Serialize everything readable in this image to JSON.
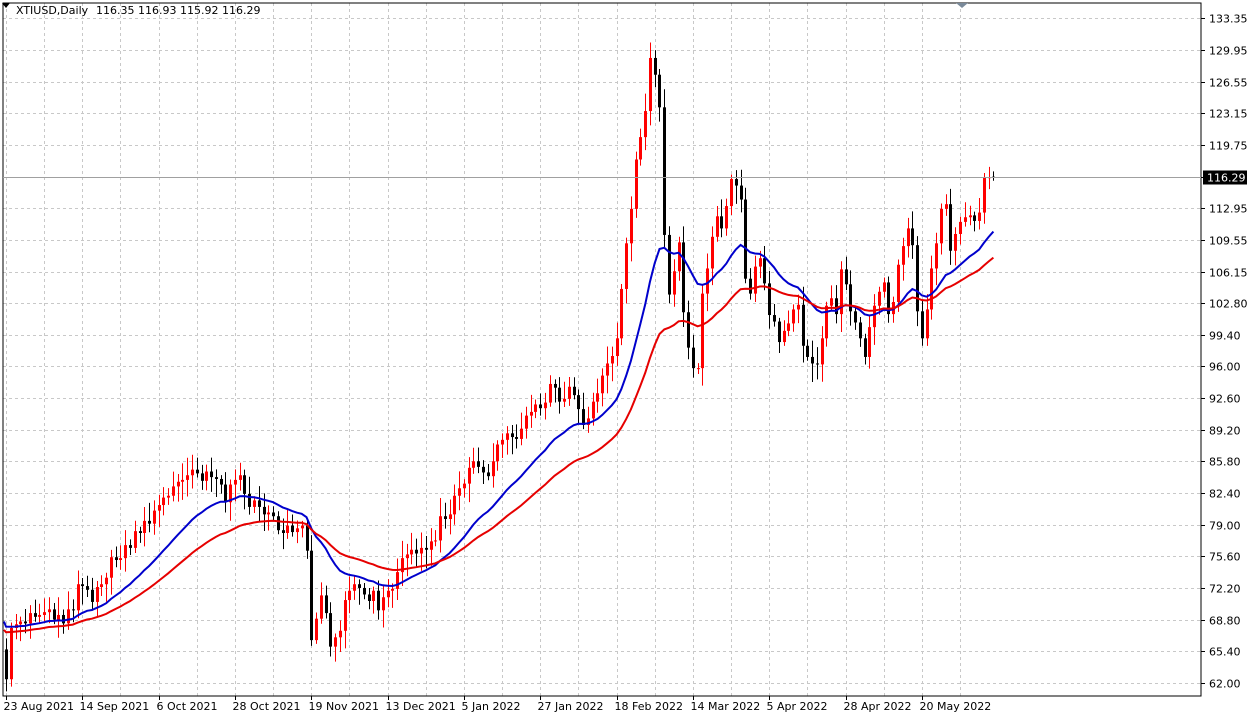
{
  "header": {
    "symbol_label": "XTIUSD,Daily",
    "ohlc_label": "116.35 116.93 115.92 116.29"
  },
  "chart_data": {
    "type": "candlestick",
    "symbol": "XTIUSD",
    "timeframe": "Daily",
    "last_price": 116.29,
    "ohlc": {
      "open": 116.35,
      "high": 116.93,
      "low": 115.92,
      "close": 116.29
    },
    "ylim": [
      60.6,
      135.0
    ],
    "y_ticks": [
      "133.35",
      "129.95",
      "126.55",
      "123.15",
      "119.75",
      "116.35",
      "112.95",
      "109.55",
      "106.15",
      "102.80",
      "99.40",
      "96.00",
      "92.60",
      "89.20",
      "85.80",
      "82.40",
      "79.00",
      "75.60",
      "72.20",
      "68.80",
      "65.40",
      "62.00"
    ],
    "x_ticks": [
      {
        "label": "23 Aug 2021",
        "bar": 0
      },
      {
        "label": "14 Sep 2021",
        "bar": 16
      },
      {
        "label": "6 Oct 2021",
        "bar": 32
      },
      {
        "label": "28 Oct 2021",
        "bar": 48
      },
      {
        "label": "19 Nov 2021",
        "bar": 64
      },
      {
        "label": "13 Dec 2021",
        "bar": 80
      },
      {
        "label": "5 Jan 2022",
        "bar": 96
      },
      {
        "label": "27 Jan 2022",
        "bar": 112
      },
      {
        "label": "18 Feb 2022",
        "bar": 128
      },
      {
        "label": "14 Mar 2022",
        "bar": 144
      },
      {
        "label": "5 Apr 2022",
        "bar": 160
      },
      {
        "label": "28 Apr 2022",
        "bar": 176
      },
      {
        "label": "20 May 2022",
        "bar": 192
      }
    ],
    "grid": true,
    "bull_color": "#ff0000",
    "bear_color": "#000000",
    "closes": [
      62.4,
      67.9,
      68.3,
      68.6,
      68.4,
      69.5,
      69.1,
      69.3,
      69.6,
      69.9,
      68.8,
      69.3,
      68.4,
      69.9,
      69.8,
      72.6,
      72.4,
      72.0,
      70.7,
      72.3,
      72.6,
      73.3,
      75.5,
      75.2,
      75.4,
      76.8,
      76.5,
      78.3,
      78.1,
      79.4,
      79.1,
      80.5,
      81.1,
      81.9,
      82.1,
      83.1,
      83.6,
      83.8,
      84.3,
      84.9,
      84.5,
      83.7,
      84.7,
      84.1,
      83.9,
      83.3,
      81.4,
      83.3,
      83.8,
      84.3,
      82.3,
      80.9,
      81.6,
      80.9,
      80.1,
      80.3,
      79.9,
      78.4,
      78.1,
      78.9,
      78.2,
      78.6,
      78.9,
      76.2,
      66.6,
      68.9,
      71.4,
      69.5,
      65.9,
      66.9,
      67.6,
      70.9,
      71.9,
      72.6,
      72.2,
      71.5,
      70.8,
      71.9,
      69.8,
      71.2,
      71.9,
      72.1,
      73.9,
      75.4,
      75.8,
      76.3,
      75.9,
      76.5,
      76.3,
      77.2,
      77.3,
      79.9,
      79.6,
      80.1,
      82.1,
      82.9,
      83.4,
      85.1,
      85.8,
      85.2,
      84.6,
      84.2,
      85.8,
      87.6,
      88.1,
      88.8,
      88.4,
      88.2,
      89.3,
      90.7,
      91.1,
      91.9,
      91.5,
      92.1,
      94.1,
      93.7,
      92.2,
      92.5,
      93.8,
      92.9,
      91.4,
      89.7,
      90.4,
      92.2,
      93.1,
      95.0,
      96.3,
      97.1,
      99.0,
      104.3,
      109.2,
      112.9,
      118.2,
      120.6,
      123.4,
      129.1,
      127.3,
      123.8,
      110.1,
      103.7,
      106.2,
      109.3,
      101.8,
      98.0,
      95.8,
      95.8,
      103.8,
      106.5,
      109.9,
      112.1,
      110.8,
      113.2,
      116.1,
      115.4,
      113.9,
      105.4,
      103.8,
      106.7,
      107.6,
      104.9,
      101.5,
      100.8,
      98.6,
      99.8,
      100.6,
      102.1,
      102.6,
      98.2,
      97.0,
      96.3,
      96.2,
      99.0,
      102.5,
      103.3,
      101.6,
      106.4,
      104.8,
      101.9,
      100.7,
      99.0,
      97.0,
      100.2,
      102.5,
      104.0,
      105.0,
      101.6,
      102.9,
      106.9,
      108.9,
      110.8,
      109.0,
      101.9,
      99.0,
      102.1,
      106.5,
      109.2,
      112.9,
      113.4,
      108.4,
      110.2,
      111.5,
      112.0,
      112.2,
      111.6,
      112.5,
      116.3,
      116.3,
      116.29
    ],
    "series": [
      {
        "period": 50,
        "color": "#0000cc",
        "seed": 68.6
      },
      {
        "period": 100,
        "color": "#e60000",
        "seed": 67.7
      }
    ]
  }
}
